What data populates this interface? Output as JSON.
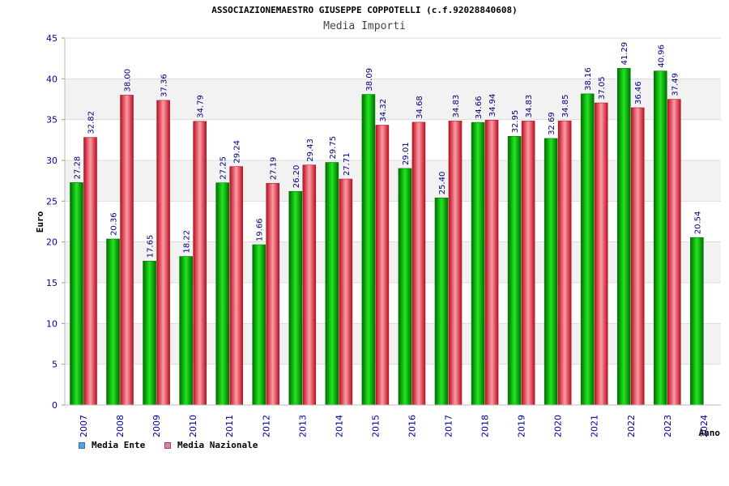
{
  "colors": {
    "ente_bar": "#00b000",
    "nazionale_bar": "#e03040",
    "ente_legend": "#5aa0e8",
    "nazionale_legend": "#e080a8",
    "tick_label": "#0000a0",
    "value_label": "#000080",
    "band": "#f2f2f2"
  },
  "chart_data": {
    "type": "bar",
    "title": "ASSOCIAZIONEMAESTRO GIUSEPPE COPPOTELLI (c.f.92028840608)",
    "subtitle": "Media Importi",
    "xlabel": "Anno",
    "ylabel": "Euro",
    "ylim": [
      0,
      45
    ],
    "yticks": [
      "0",
      "5",
      "10",
      "15",
      "20",
      "25",
      "30",
      "35",
      "40",
      "45"
    ],
    "grid": true,
    "legend_position": "bottom-left",
    "categories": [
      "2007",
      "2008",
      "2009",
      "2010",
      "2011",
      "2012",
      "2013",
      "2014",
      "2015",
      "2016",
      "2017",
      "2018",
      "2019",
      "2020",
      "2021",
      "2022",
      "2023",
      "2024"
    ],
    "series": [
      {
        "name": "Media Ente",
        "values": [
          27.28,
          20.36,
          17.65,
          18.22,
          27.25,
          19.66,
          26.2,
          29.75,
          38.09,
          29.01,
          25.4,
          34.66,
          32.95,
          32.69,
          38.16,
          41.29,
          40.96,
          20.54
        ],
        "labels": [
          "27.28",
          "20.36",
          "17.65",
          "18.22",
          "27.25",
          "19.66",
          "26.20",
          "29.75",
          "38.09",
          "29.01",
          "25.40",
          "34.66",
          "32.95",
          "32.69",
          "38.16",
          "41.29",
          "40.96",
          "20.54"
        ]
      },
      {
        "name": "Media Nazionale",
        "values": [
          32.82,
          38.0,
          37.36,
          34.79,
          29.24,
          27.19,
          29.43,
          27.71,
          34.32,
          34.68,
          34.83,
          34.94,
          34.83,
          34.85,
          37.05,
          36.46,
          37.49,
          null
        ],
        "labels": [
          "32.82",
          "38.00",
          "37.36",
          "34.79",
          "29.24",
          "27.19",
          "29.43",
          "27.71",
          "34.32",
          "34.68",
          "34.83",
          "34.94",
          "34.83",
          "34.85",
          "37.05",
          "36.46",
          "37.49",
          null
        ]
      }
    ]
  }
}
